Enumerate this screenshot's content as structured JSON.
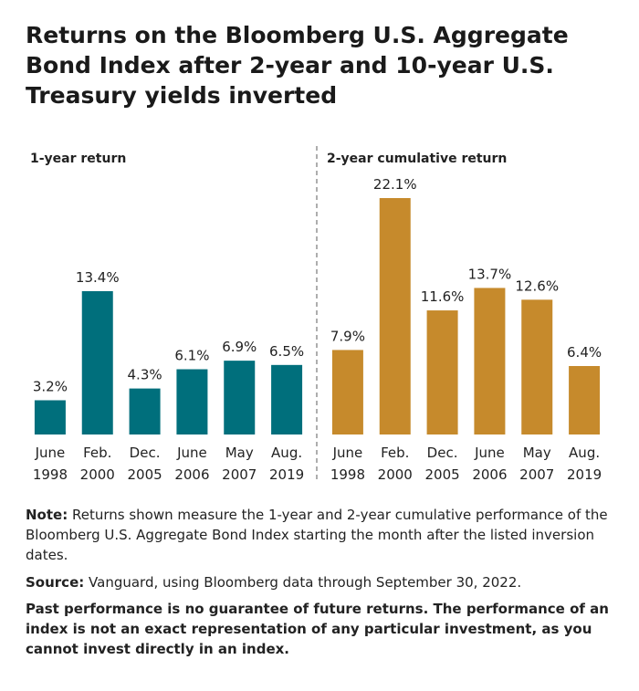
{
  "title": "Returns on the Bloomberg U.S. Aggregate Bond Index after 2-year and 10-year U.S. Treasury yields inverted",
  "chart_data": [
    {
      "type": "bar",
      "title": "1-year return",
      "color": "#006f7c",
      "categories": [
        "June 1998",
        "Feb. 2000",
        "Dec. 2005",
        "June 2006",
        "May 2007",
        "Aug. 2019"
      ],
      "values": [
        3.2,
        13.4,
        4.3,
        6.1,
        6.9,
        6.5
      ],
      "value_labels": [
        "3.2%",
        "13.4%",
        "4.3%",
        "6.1%",
        "6.9%",
        "6.5%"
      ]
    },
    {
      "type": "bar",
      "title": "2-year cumulative return",
      "color": "#c68a2c",
      "categories": [
        "June 1998",
        "Feb. 2000",
        "Dec. 2005",
        "June 2006",
        "May 2007",
        "Aug. 2019"
      ],
      "values": [
        7.9,
        22.1,
        11.6,
        13.7,
        12.6,
        6.4
      ],
      "value_labels": [
        "7.9%",
        "22.1%",
        "11.6%",
        "13.7%",
        "12.6%",
        "6.4%"
      ]
    }
  ],
  "notes": [
    {
      "label": "Note:",
      "text": "Returns shown measure the 1-year and 2-year cumulative performance of the Bloomberg U.S. Aggregate Bond Index starting the month after the listed inversion dates."
    },
    {
      "label": "Source:",
      "text": "Vanguard, using Bloomberg data through September 30, 2022."
    }
  ],
  "disclaimer": "Past performance is no guarantee of future returns. The performance of an index is not an exact representation of any particular investment, as you cannot invest directly in an index."
}
